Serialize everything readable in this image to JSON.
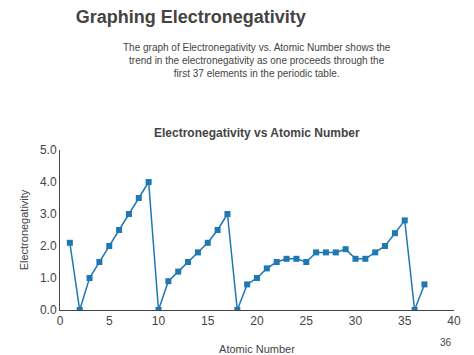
{
  "title": "Graphing Electronegativity",
  "subtitle": "The graph of Electronegativity vs. Atomic Number shows the\ntrend in the electronegativity as one proceeds through the\nfirst 37 elements in the periodic table.",
  "annotations": [
    "36"
  ],
  "chart_data": {
    "type": "line",
    "title": "Electronegativity vs Atomic Number",
    "x_label": "Atomic Number",
    "y_label": "Electronegativity",
    "x": [
      1,
      2,
      3,
      4,
      5,
      6,
      7,
      8,
      9,
      10,
      11,
      12,
      13,
      14,
      15,
      16,
      17,
      18,
      19,
      20,
      21,
      22,
      23,
      24,
      25,
      26,
      27,
      28,
      29,
      30,
      31,
      32,
      33,
      34,
      35,
      36,
      37
    ],
    "values": [
      2.1,
      0.0,
      1.0,
      1.5,
      2.0,
      2.5,
      3.0,
      3.5,
      4.0,
      0.0,
      0.9,
      1.2,
      1.5,
      1.8,
      2.1,
      2.5,
      3.0,
      0.0,
      0.8,
      1.0,
      1.3,
      1.5,
      1.6,
      1.6,
      1.5,
      1.8,
      1.8,
      1.8,
      1.9,
      1.6,
      1.6,
      1.8,
      2.0,
      2.4,
      2.8,
      0.0,
      0.8
    ],
    "marker": "square",
    "xlim": [
      0,
      40
    ],
    "xticks": [
      0,
      5,
      10,
      15,
      20,
      25,
      30,
      35,
      40
    ],
    "ylim": [
      0,
      5.0
    ],
    "yticks": [
      {
        "value": 0.0,
        "label": "0.0"
      },
      {
        "value": 1.0,
        "label": "1.0"
      },
      {
        "value": 2.0,
        "label": "2.0"
      },
      {
        "value": 3.0,
        "label": "3.0"
      },
      {
        "value": 4.0,
        "label": "4.0"
      },
      {
        "value": 5.0,
        "label": "5.0"
      }
    ],
    "grid": false
  }
}
